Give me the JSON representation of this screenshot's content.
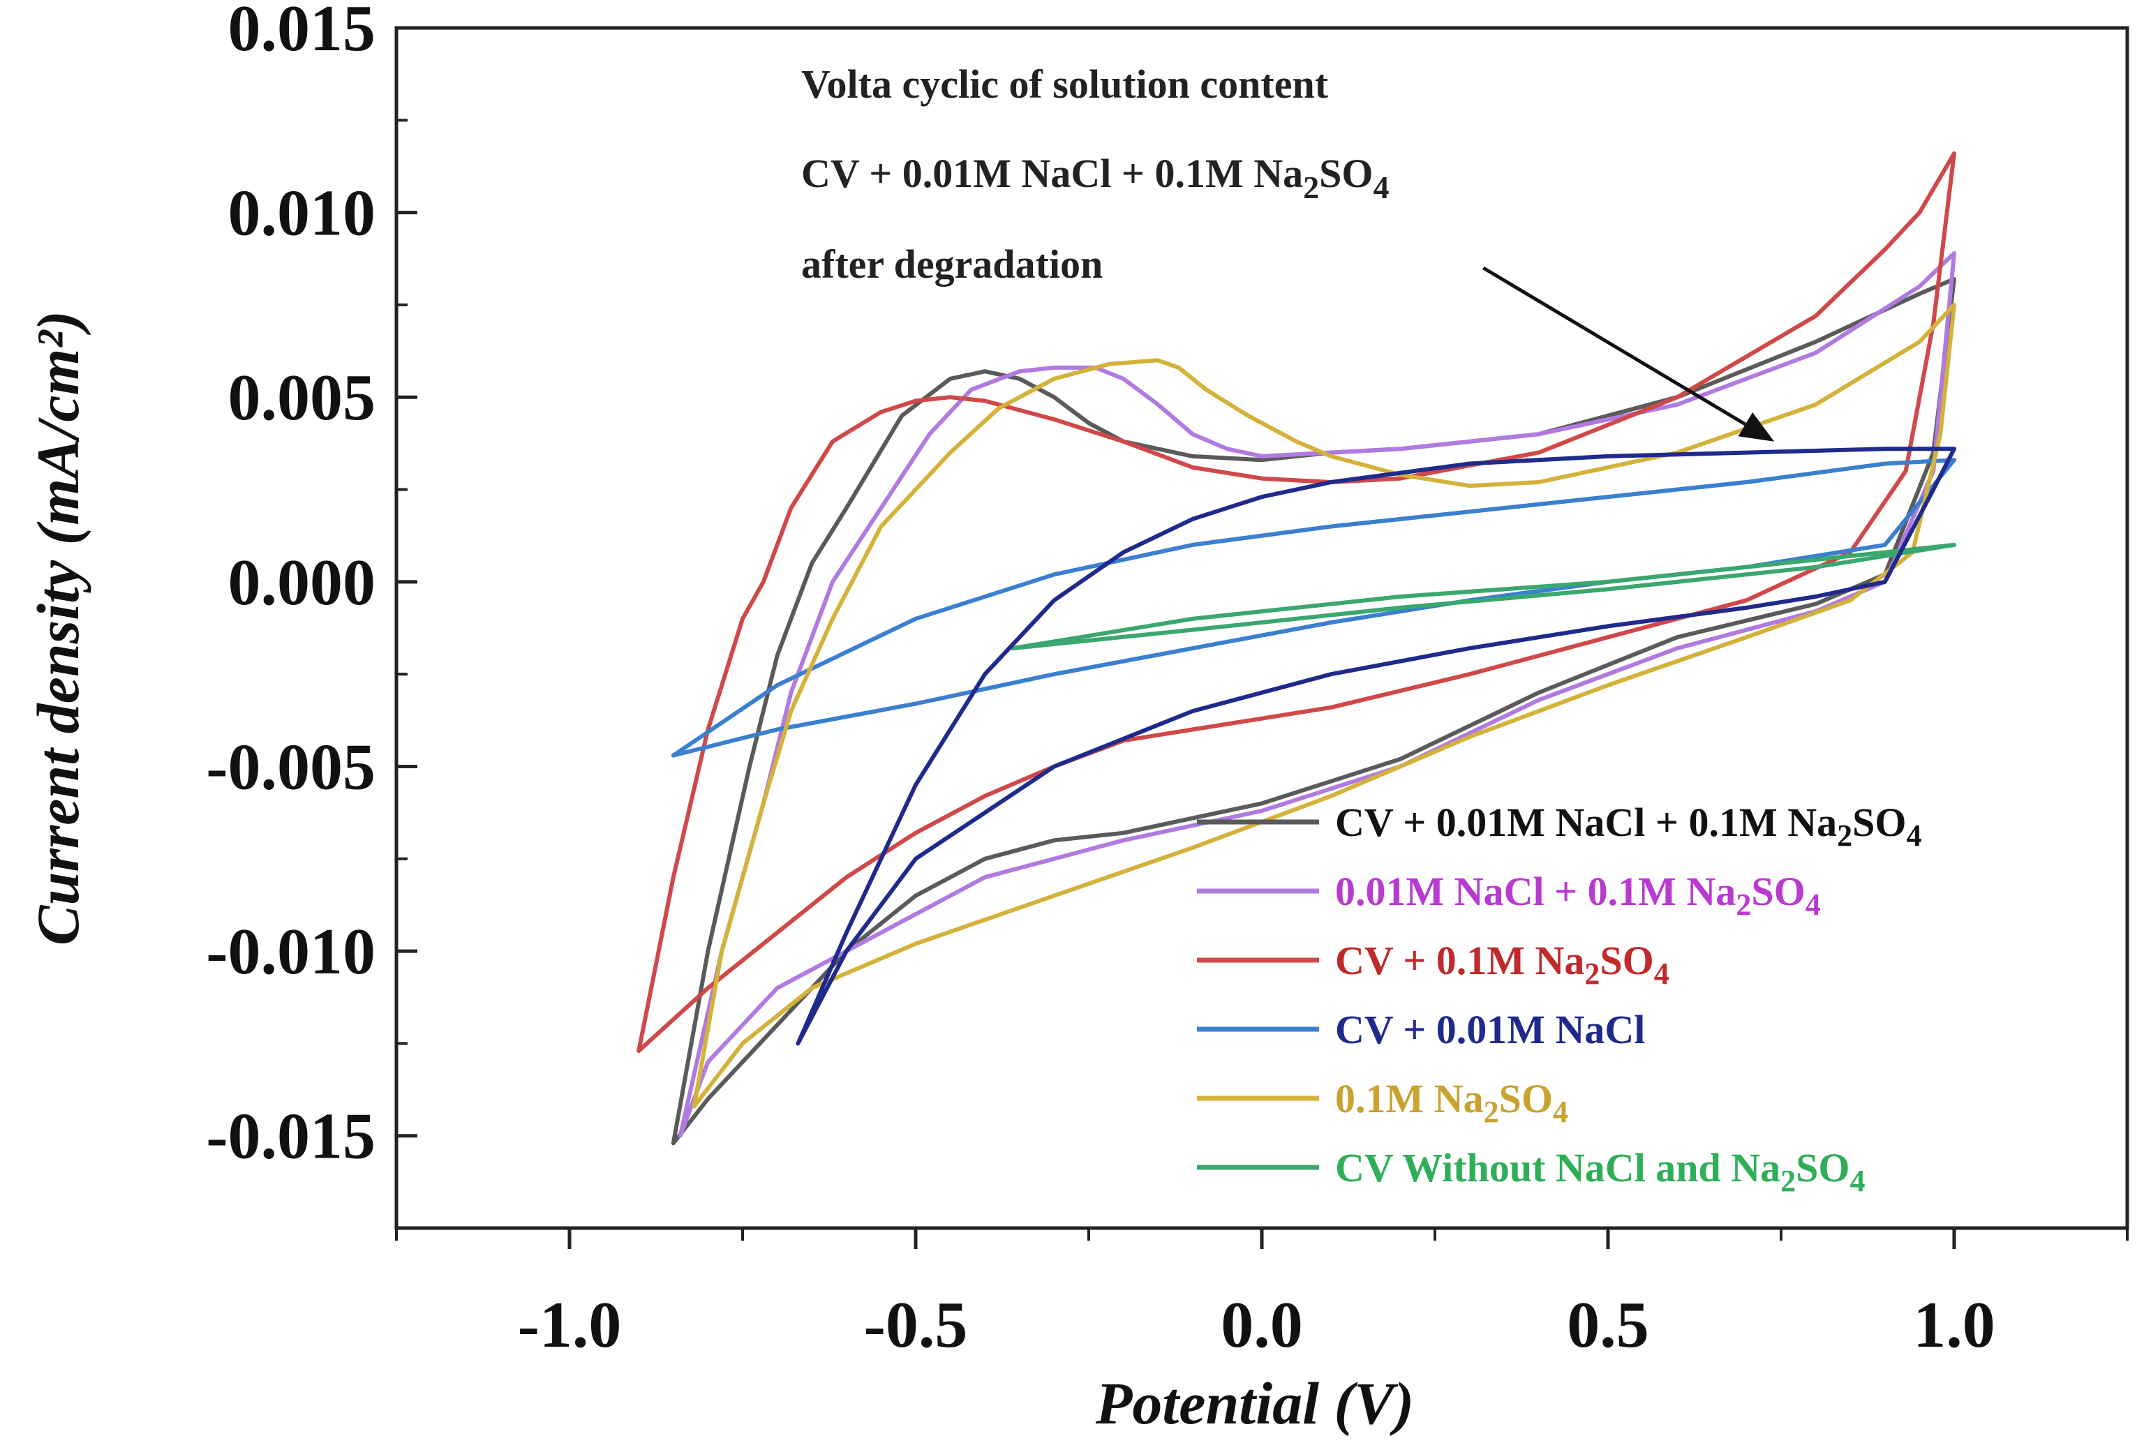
{
  "chart_data": {
    "type": "line",
    "title": "",
    "xlabel": "Potential (V)",
    "ylabel": "Current density (mA/cm²)",
    "xlim": [
      -1.25,
      1.25
    ],
    "ylim": [
      -0.0175,
      0.015
    ],
    "x_ticks": [
      -1.0,
      -0.5,
      0.0,
      0.5,
      1.0
    ],
    "x_tick_labels": [
      "-1.0",
      "-0.5",
      "0.0",
      "0.5",
      "1.0"
    ],
    "y_ticks": [
      0.015,
      0.01,
      0.005,
      0.0,
      -0.005,
      -0.01,
      -0.015
    ],
    "y_tick_labels": [
      "0.015",
      "0.010",
      "0.005",
      "0.000",
      "-0.005",
      "-0.010",
      "-0.015"
    ],
    "grid": false,
    "legend_position": "bottom-right",
    "annotation": {
      "lines": [
        "Volta cyclic of solution content",
        "CV + 0.01M NaCl + 0.1M Na2SO4",
        "after degradation"
      ],
      "arrow_from": [
        0.32,
        0.0085
      ],
      "arrow_to": [
        0.74,
        0.0038
      ]
    },
    "series": [
      {
        "name": "CV + 0.01M NaCl + 0.1M Na2SO4",
        "color": "#5a5a5a",
        "x": [
          -0.85,
          -0.8,
          -0.74,
          -0.7,
          -0.65,
          -0.6,
          -0.52,
          -0.45,
          -0.4,
          -0.35,
          -0.3,
          -0.25,
          -0.2,
          -0.1,
          0.0,
          0.1,
          0.2,
          0.4,
          0.6,
          0.8,
          0.95,
          1.0,
          0.97,
          0.9,
          0.8,
          0.6,
          0.4,
          0.2,
          0.0,
          -0.2,
          -0.3,
          -0.4,
          -0.5,
          -0.6,
          -0.7,
          -0.8,
          -0.85
        ],
        "y": [
          -0.0152,
          -0.01,
          -0.005,
          -0.002,
          0.0005,
          0.002,
          0.0045,
          0.0055,
          0.0057,
          0.0055,
          0.005,
          0.0043,
          0.0038,
          0.0034,
          0.0033,
          0.0035,
          0.0036,
          0.004,
          0.005,
          0.0065,
          0.0078,
          0.0082,
          0.0035,
          0.0002,
          -0.0006,
          -0.0015,
          -0.003,
          -0.0048,
          -0.006,
          -0.0068,
          -0.007,
          -0.0075,
          -0.0085,
          -0.01,
          -0.012,
          -0.014,
          -0.0152
        ]
      },
      {
        "name": "0.01M NaCl + 0.1M Na2SO4",
        "color": "#b07ae0",
        "x": [
          -0.84,
          -0.78,
          -0.72,
          -0.68,
          -0.62,
          -0.55,
          -0.48,
          -0.42,
          -0.35,
          -0.3,
          -0.24,
          -0.2,
          -0.15,
          -0.1,
          -0.05,
          0.0,
          0.1,
          0.2,
          0.4,
          0.6,
          0.8,
          0.95,
          1.0,
          0.97,
          0.9,
          0.8,
          0.6,
          0.4,
          0.2,
          0.0,
          -0.2,
          -0.4,
          -0.55,
          -0.7,
          -0.8,
          -0.84
        ],
        "y": [
          -0.015,
          -0.01,
          -0.006,
          -0.003,
          0.0,
          0.002,
          0.004,
          0.0052,
          0.0057,
          0.0058,
          0.0058,
          0.0055,
          0.0048,
          0.004,
          0.0036,
          0.0034,
          0.0035,
          0.0036,
          0.004,
          0.0048,
          0.0062,
          0.008,
          0.0089,
          0.003,
          0.0,
          -0.0008,
          -0.0018,
          -0.0032,
          -0.005,
          -0.0062,
          -0.007,
          -0.008,
          -0.0095,
          -0.011,
          -0.013,
          -0.015
        ]
      },
      {
        "name": "CV + 0.1M Na2SO4",
        "color": "#d04848",
        "x": [
          -0.9,
          -0.85,
          -0.8,
          -0.75,
          -0.72,
          -0.68,
          -0.62,
          -0.55,
          -0.5,
          -0.45,
          -0.4,
          -0.3,
          -0.2,
          -0.1,
          0.0,
          0.1,
          0.2,
          0.4,
          0.6,
          0.8,
          0.9,
          0.95,
          1.0,
          0.97,
          0.93,
          0.85,
          0.7,
          0.5,
          0.3,
          0.1,
          0.0,
          -0.1,
          -0.2,
          -0.3,
          -0.4,
          -0.5,
          -0.6,
          -0.7,
          -0.8,
          -0.9
        ],
        "y": [
          -0.0127,
          -0.008,
          -0.004,
          -0.001,
          0.0,
          0.002,
          0.0038,
          0.0046,
          0.0049,
          0.005,
          0.0049,
          0.0044,
          0.0038,
          0.0031,
          0.0028,
          0.0027,
          0.0028,
          0.0035,
          0.005,
          0.0072,
          0.009,
          0.01,
          0.0116,
          0.007,
          0.003,
          0.0008,
          -0.0005,
          -0.0015,
          -0.0025,
          -0.0034,
          -0.0037,
          -0.004,
          -0.0043,
          -0.005,
          -0.0058,
          -0.0068,
          -0.008,
          -0.0095,
          -0.011,
          -0.0127
        ]
      },
      {
        "name": "CV + 0.01M NaCl",
        "color": "#3a7fd0",
        "x": [
          -0.85,
          -0.7,
          -0.5,
          -0.3,
          -0.1,
          0.1,
          0.3,
          0.5,
          0.7,
          0.9,
          1.0,
          0.9,
          0.7,
          0.5,
          0.3,
          0.1,
          -0.1,
          -0.3,
          -0.5,
          -0.7,
          -0.85
        ],
        "y": [
          -0.0047,
          -0.0028,
          -0.001,
          0.0002,
          0.001,
          0.0015,
          0.0019,
          0.0023,
          0.0027,
          0.0032,
          0.0033,
          0.001,
          0.0004,
          0.0,
          -0.0005,
          -0.0011,
          -0.0018,
          -0.0025,
          -0.0033,
          -0.004,
          -0.0047
        ]
      },
      {
        "name": "0.1M Na2SO4",
        "color": "#d4b23a",
        "x": [
          -0.82,
          -0.78,
          -0.72,
          -0.68,
          -0.62,
          -0.55,
          -0.45,
          -0.38,
          -0.3,
          -0.22,
          -0.15,
          -0.12,
          -0.08,
          -0.02,
          0.05,
          0.1,
          0.2,
          0.3,
          0.4,
          0.6,
          0.8,
          0.95,
          1.0,
          0.98,
          0.94,
          0.85,
          0.7,
          0.5,
          0.3,
          0.1,
          -0.1,
          -0.3,
          -0.5,
          -0.65,
          -0.75,
          -0.82
        ],
        "y": [
          -0.0142,
          -0.01,
          -0.006,
          -0.0035,
          -0.001,
          0.0015,
          0.0035,
          0.0047,
          0.0055,
          0.0059,
          0.006,
          0.0058,
          0.0052,
          0.0045,
          0.0038,
          0.0034,
          0.0029,
          0.0026,
          0.0027,
          0.0035,
          0.0048,
          0.0065,
          0.0075,
          0.004,
          0.0008,
          -0.0005,
          -0.0015,
          -0.0028,
          -0.0042,
          -0.0058,
          -0.0072,
          -0.0085,
          -0.0098,
          -0.011,
          -0.0125,
          -0.0142
        ]
      },
      {
        "name": "CV Without NaCl and Na2SO4",
        "color": "#3aa86e",
        "x": [
          -0.36,
          -0.1,
          0.2,
          0.5,
          0.8,
          1.0,
          0.8,
          0.5,
          0.2,
          -0.1,
          -0.36
        ],
        "y": [
          -0.0018,
          -0.001,
          -0.0004,
          0.0,
          0.0006,
          0.001,
          0.0004,
          -0.0002,
          -0.0007,
          -0.0013,
          -0.0018
        ]
      },
      {
        "name": "CV + 0.01M NaCl + 0.1M Na2SO4 after degradation",
        "color": "#1f2a8c",
        "x": [
          -0.67,
          -0.6,
          -0.5,
          -0.4,
          -0.3,
          -0.2,
          -0.1,
          0.0,
          0.1,
          0.3,
          0.5,
          0.7,
          0.9,
          1.0,
          0.97,
          0.9,
          0.8,
          0.7,
          0.5,
          0.3,
          0.1,
          -0.1,
          -0.3,
          -0.5,
          -0.6,
          -0.67
        ],
        "y": [
          -0.0125,
          -0.0095,
          -0.0055,
          -0.0025,
          -0.0005,
          0.0008,
          0.0017,
          0.0023,
          0.0027,
          0.0032,
          0.0034,
          0.0035,
          0.0036,
          0.0036,
          0.0025,
          0.0,
          -0.0004,
          -0.0007,
          -0.0012,
          -0.0018,
          -0.0025,
          -0.0035,
          -0.005,
          -0.0075,
          -0.01,
          -0.0125
        ]
      }
    ],
    "legend": [
      {
        "prefix": "CV + 0.01M NaCl + 0.1M Na",
        "sub1": "2",
        "mid": "SO",
        "sub2": "4",
        "suffix": "",
        "color": "#5a5a5a",
        "text_color": "#111111"
      },
      {
        "prefix": " 0.01M NaCl + 0.1M Na",
        "sub1": "2",
        "mid": "SO",
        "sub2": "4",
        "suffix": "",
        "color": "#b07ae0",
        "text_color": "#b93ad0"
      },
      {
        "prefix": "CV + 0.1M Na",
        "sub1": "2",
        "mid": "SO",
        "sub2": "4",
        "suffix": "",
        "color": "#d04848",
        "text_color": "#c02a2a"
      },
      {
        "prefix": "CV + 0.01M NaCl",
        "sub1": "",
        "mid": "",
        "sub2": "",
        "suffix": "",
        "color": "#3a7fd0",
        "text_color": "#1f2a8c"
      },
      {
        "prefix": "0.1M Na",
        "sub1": "2",
        "mid": "SO",
        "sub2": "4",
        "suffix": "",
        "color": "#d4b23a",
        "text_color": "#c9a230"
      },
      {
        "prefix": "CV Without NaCl and Na",
        "sub1": "2",
        "mid": "SO",
        "sub2": "4",
        "suffix": "",
        "color": "#3aa86e",
        "text_color": "#2fae58"
      }
    ]
  }
}
